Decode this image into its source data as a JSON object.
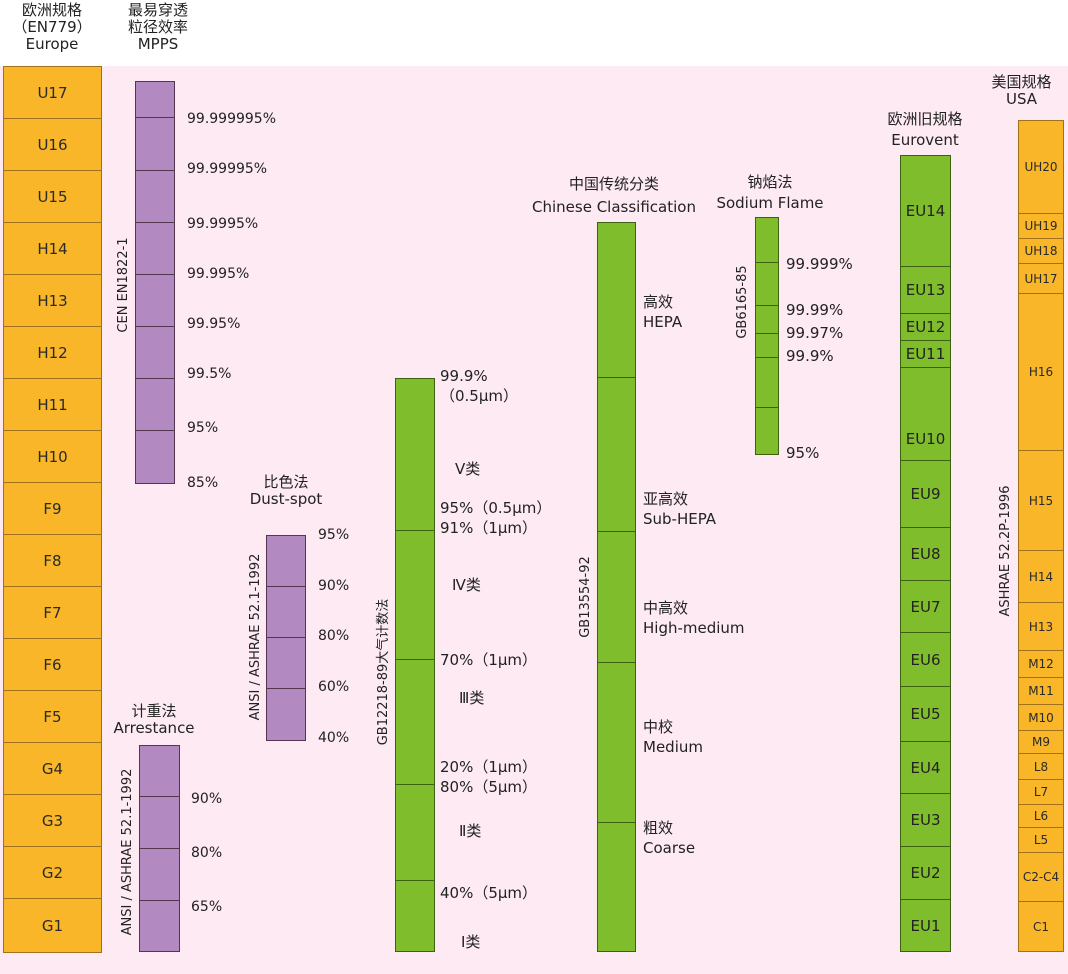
{
  "europe": {
    "title_cn": "欧洲规格",
    "title_std": "（EN779）",
    "title_en": "Europe",
    "grades": [
      "U17",
      "U16",
      "U15",
      "H14",
      "H13",
      "H12",
      "H11",
      "H10",
      "F9",
      "F8",
      "F7",
      "F6",
      "F5",
      "G4",
      "G3",
      "G2",
      "G1"
    ]
  },
  "mpps": {
    "title_cn1": "最易穿透",
    "title_cn2": "粒径效率",
    "title_en": "MPPS",
    "standard": "CEN EN1822-1",
    "values": [
      "99.999995%",
      "99.99995%",
      "99.9995%",
      "99.995%",
      "99.95%",
      "99.5%",
      "95%",
      "85%"
    ]
  },
  "arrestance": {
    "title_cn": "计重法",
    "title_en": "Arrestance",
    "standard": "ANSI / ASHRAE 52.1-1992",
    "values": [
      "90%",
      "80%",
      "65%"
    ]
  },
  "dustspot": {
    "title_cn": "比色法",
    "title_en": "Dust-spot",
    "standard": "ANSI / ASHRAE 52.1-1992",
    "values": [
      "95%",
      "90%",
      "80%",
      "60%",
      "40%"
    ]
  },
  "gb12218": {
    "standard": "GB12218-89大气计数法",
    "values": [
      {
        "l1": "99.9%",
        "l2": "（0.5μm）"
      },
      {
        "l1": "95%（0.5μm）",
        "l2": "91%（1μm）"
      },
      {
        "l1": "70%（1μm）"
      },
      {
        "l1": "20%（1μm）",
        "l2": "80%（5μm）"
      },
      {
        "l1": "40%（5μm）"
      }
    ],
    "classes": [
      "Ⅴ类",
      "Ⅳ类",
      "Ⅲ类",
      "Ⅱ类",
      "Ⅰ类"
    ]
  },
  "chinese": {
    "title_cn": "中国传统分类",
    "title_en": "Chinese Classification",
    "standard": "GB13554-92",
    "classes": [
      {
        "cn": "高效",
        "en": "HEPA"
      },
      {
        "cn": "亚高效",
        "en": "Sub-HEPA"
      },
      {
        "cn": "中高效",
        "en": "High-medium"
      },
      {
        "cn": "中校",
        "en": "Medium"
      },
      {
        "cn": "粗效",
        "en": "Coarse"
      }
    ]
  },
  "sodium": {
    "title_cn": "钠焰法",
    "title_en": "Sodium Flame",
    "standard": "GB6165-85",
    "values": [
      "99.999%",
      "99.99%",
      "99.97%",
      "99.9%",
      "95%"
    ]
  },
  "eurovent": {
    "title_cn": "欧洲旧规格",
    "title_en": "Eurovent",
    "grades": [
      "EU14",
      "EU13",
      "EU12",
      "EU11",
      "EU10",
      "EU9",
      "EU8",
      "EU7",
      "EU6",
      "EU5",
      "EU4",
      "EU3",
      "EU2",
      "EU1"
    ]
  },
  "usa": {
    "title_cn": "美国规格",
    "title_en": "USA",
    "standard": "ASHRAE 52.2P-1996",
    "grades": [
      "UH20",
      "UH19",
      "UH18",
      "UH17",
      "H16",
      "H15",
      "H14",
      "H13",
      "M12",
      "M11",
      "M10",
      "M9",
      "L8",
      "L7",
      "L6",
      "L5",
      "C2-C4",
      "C1"
    ]
  },
  "colors": {
    "background": "#fdeaf2",
    "orange": "#f8b628",
    "purple": "#b389c1",
    "green": "#7fbd2c"
  }
}
